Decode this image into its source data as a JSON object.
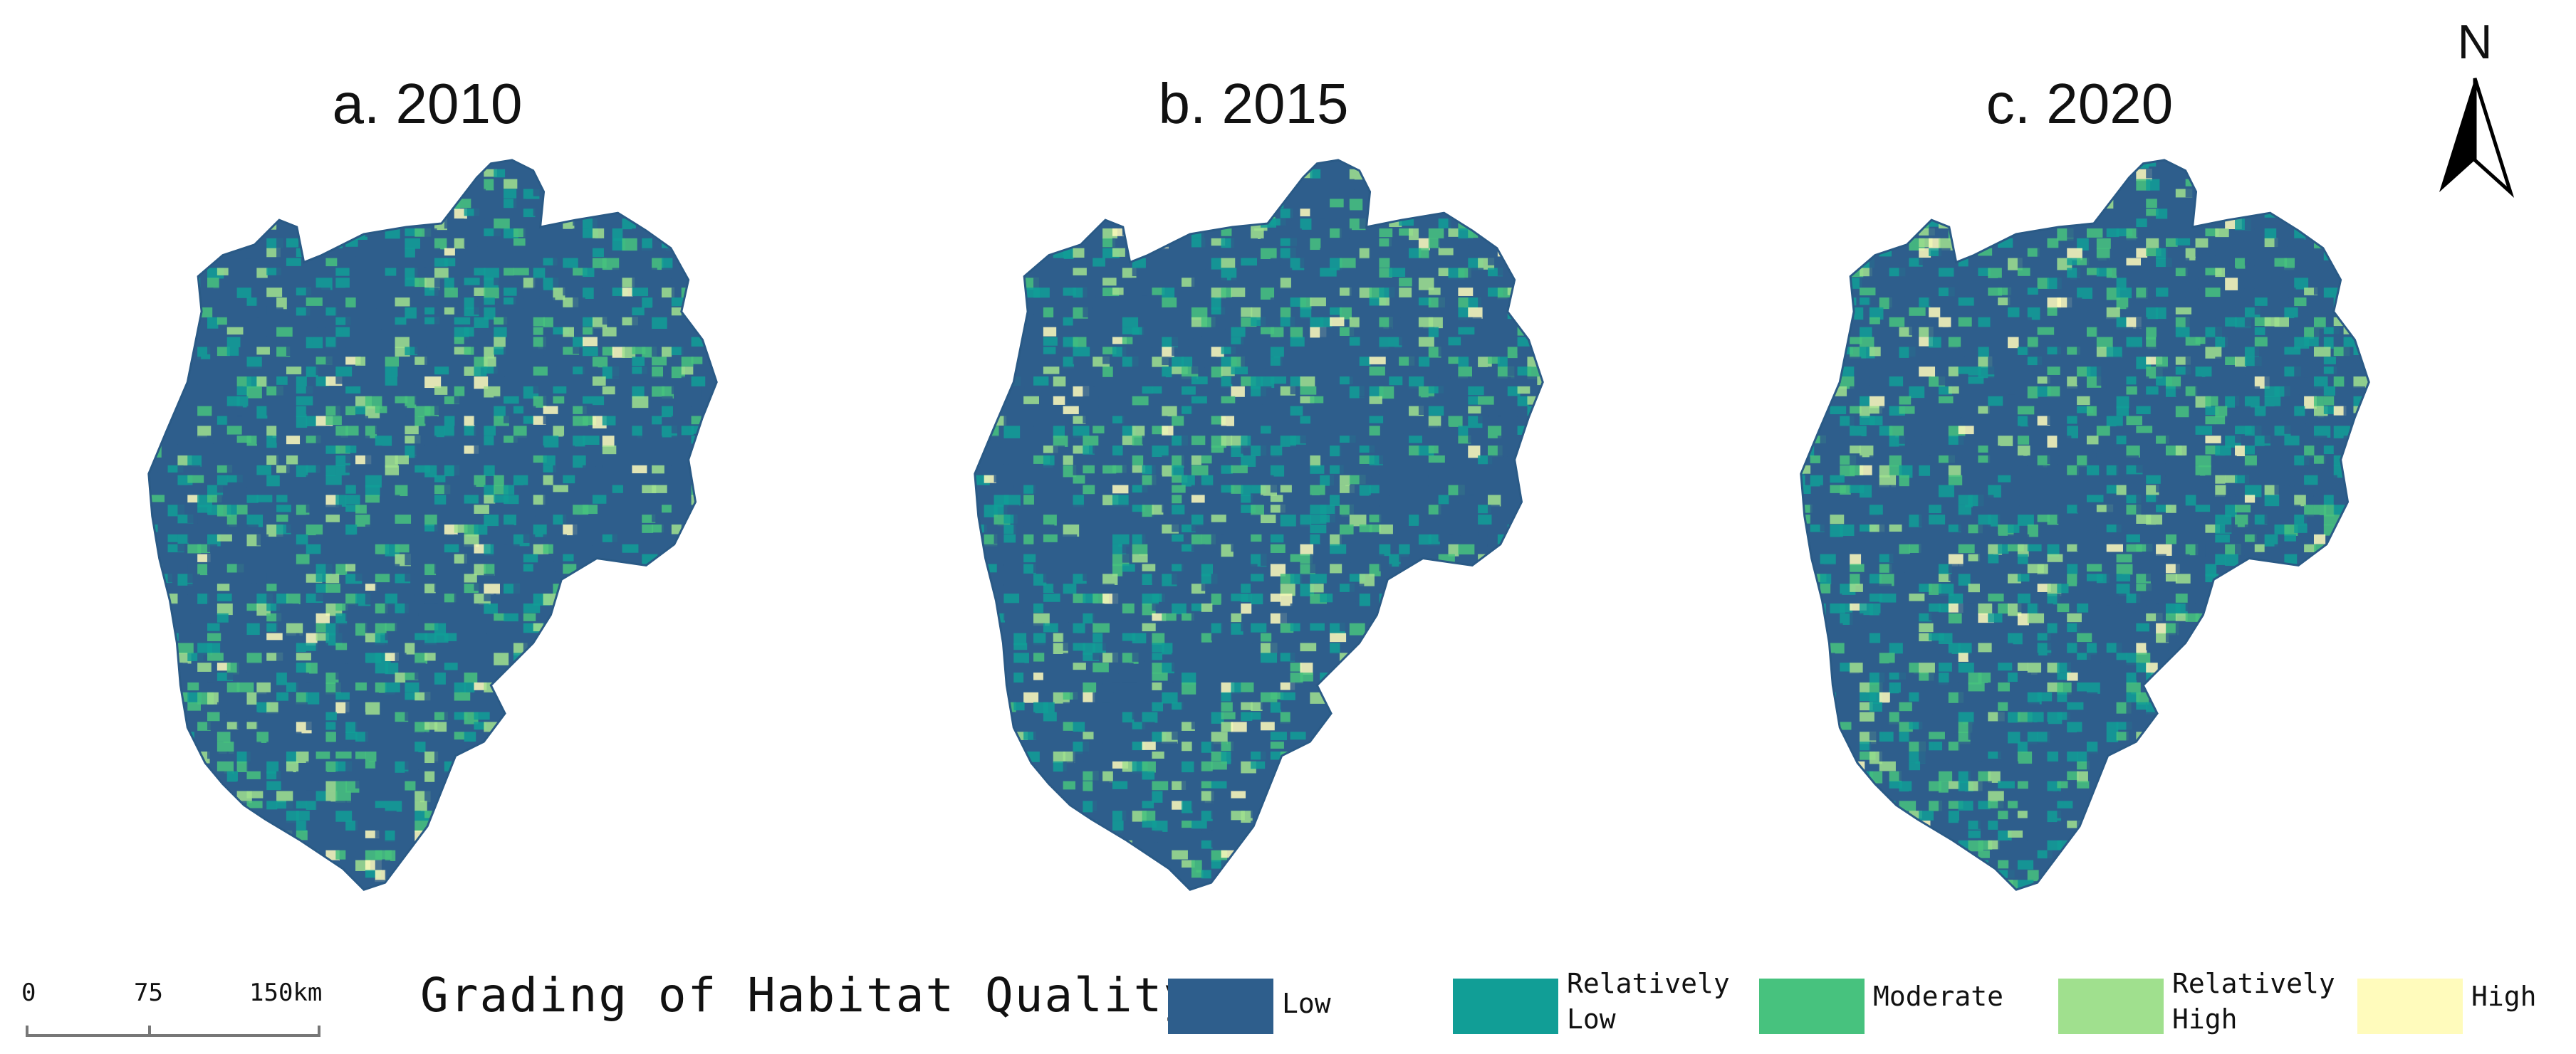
{
  "maps": [
    {
      "title": "a. 2010"
    },
    {
      "title": "b. 2015"
    },
    {
      "title": "c. 2020"
    }
  ],
  "north_arrow": {
    "label": "N",
    "icon": "north-arrow-icon"
  },
  "scalebar": {
    "ticks": [
      "0",
      "75",
      "150km"
    ]
  },
  "legend": {
    "title": "Grading of Habitat Quality",
    "classes": [
      {
        "label": "Low",
        "color": "#2E5E8C"
      },
      {
        "label": "Relatively\nLow",
        "color": "#119E96"
      },
      {
        "label": "Moderate",
        "color": "#47C27E"
      },
      {
        "label": "Relatively\nHigh",
        "color": "#A0E08E"
      },
      {
        "label": "High",
        "color": "#FFFBBC"
      }
    ]
  }
}
